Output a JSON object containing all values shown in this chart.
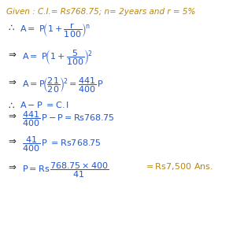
{
  "bg_color": "#ffffff",
  "given_color": "#b8860b",
  "text_color": "#2255cc",
  "black_color": "#222222",
  "ans_color": "#b8860b",
  "figsize": [
    3.1,
    3.1
  ],
  "dpi": 100,
  "fs_given": 7.5,
  "fs_main": 8.0,
  "fs_symbol": 8.5
}
